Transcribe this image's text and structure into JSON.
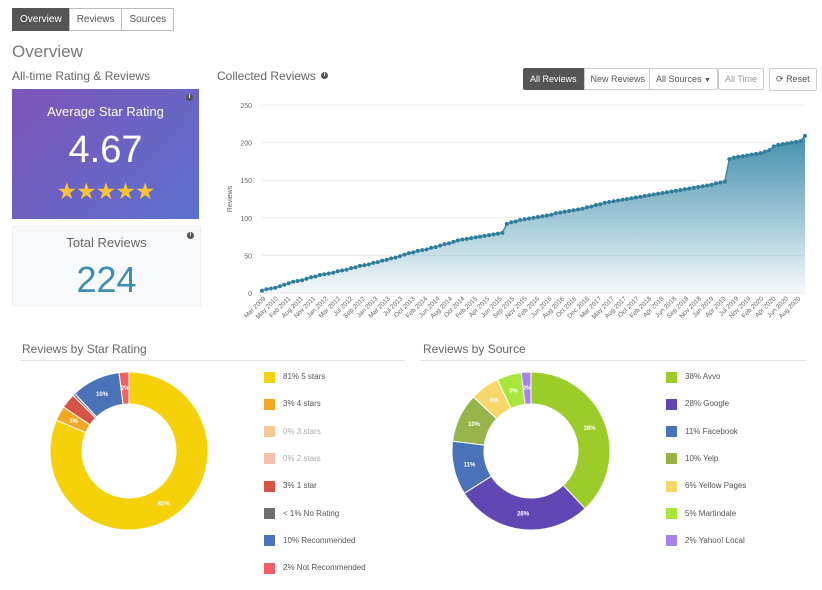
{
  "tabs": [
    "Overview",
    "Reviews",
    "Sources"
  ],
  "page_title": "Overview",
  "left_section_title": "All-time Rating & Reviews",
  "avg_card": {
    "label": "Average Star Rating",
    "value": "4.67",
    "stars": "★★★★★"
  },
  "total_card": {
    "label": "Total Reviews",
    "value": "224"
  },
  "chart_section_title": "Collected Reviews",
  "chart_buttons": {
    "all_reviews": "All Reviews",
    "new_reviews": "New Reviews",
    "all_sources": "All Sources",
    "all_time": "All Time",
    "reset": "Reset"
  },
  "star_section_title": "Reviews by Star Rating",
  "source_section_title": "Reviews by Source",
  "colors": {
    "accent": "#3c8fb0",
    "line": "#3a8aa8",
    "avg_card_start": "#7d55b8",
    "avg_card_end": "#5b70cc"
  },
  "chart_data": [
    {
      "type": "area",
      "title": "Collected Reviews",
      "ylabel": "Reviews",
      "xlabel": "",
      "ylim": [
        0,
        250
      ],
      "yticks": [
        0,
        50,
        100,
        150,
        200,
        250
      ],
      "x_tick_labels": [
        "Mar 2009",
        "May 2010",
        "Feb 2011",
        "Aug 2011",
        "Nov 2011",
        "Jan 2012",
        "Mar 2012",
        "Jul 2012",
        "Sep 2012",
        "Jan 2013",
        "Mar 2013",
        "Jul 2013",
        "Oct 2013",
        "Feb 2014",
        "Jun 2014",
        "Aug 2014",
        "Oct 2014",
        "Feb 2015",
        "Apr 2015",
        "Jun 2015",
        "Sep 2015",
        "Nov 2015",
        "Feb 2016",
        "Jun 2016",
        "Aug 2016",
        "Oct 2016",
        "Dec 2016",
        "Mar 2017",
        "May 2017",
        "Aug 2017",
        "Oct 2017",
        "Feb 2018",
        "Apr 2018",
        "Jun 2018",
        "Sep 2018",
        "Nov 2018",
        "Jan 2019",
        "Apr 2019",
        "Jul 2019",
        "Nov 2019",
        "Feb 2020",
        "Apr 2020",
        "Jun 2020",
        "Aug 2020"
      ],
      "values": [
        3,
        5,
        6,
        7,
        9,
        11,
        13,
        15,
        16,
        17,
        19,
        21,
        22,
        24,
        25,
        26,
        27,
        29,
        30,
        31,
        33,
        34,
        36,
        37,
        38,
        40,
        41,
        43,
        44,
        46,
        47,
        49,
        51,
        53,
        54,
        56,
        57,
        58,
        60,
        61,
        63,
        65,
        66,
        68,
        70,
        71,
        72,
        73,
        74,
        75,
        76,
        77,
        78,
        79,
        80,
        92,
        94,
        95,
        97,
        98,
        99,
        100,
        101,
        102,
        103,
        104,
        106,
        107,
        108,
        109,
        110,
        111,
        112,
        114,
        115,
        117,
        118,
        120,
        121,
        122,
        123,
        124,
        125,
        126,
        127,
        128,
        129,
        130,
        131,
        132,
        133,
        134,
        135,
        136,
        137,
        138,
        139,
        140,
        141,
        142,
        143,
        144,
        146,
        147,
        148,
        178,
        180,
        181,
        182,
        183,
        184,
        185,
        186,
        188,
        190,
        195,
        197,
        198,
        199,
        200,
        201,
        202,
        209
      ],
      "grid": true
    },
    {
      "type": "pie",
      "title": "Reviews by Star Rating",
      "donut": true,
      "slices": [
        {
          "label": "81% 5 stars",
          "pct": 81,
          "display": "81%",
          "color": "#f5d10a"
        },
        {
          "label": "3% 4 stars",
          "pct": 3,
          "display": "3%",
          "color": "#f0a826"
        },
        {
          "label": "0% 3 stars",
          "pct": 0,
          "display": "",
          "color": "#f5c89a",
          "muted": true
        },
        {
          "label": "0% 2 stars",
          "pct": 0,
          "display": "",
          "color": "#f5bfae",
          "muted": true
        },
        {
          "label": "3% 1 star",
          "pct": 3,
          "display": "",
          "color": "#d95247"
        },
        {
          "label": "< 1% No Rating",
          "pct": 0.5,
          "display": "",
          "color": "#707070"
        },
        {
          "label": "10% Recommended",
          "pct": 10,
          "display": "10%",
          "color": "#4a72b8"
        },
        {
          "label": "2% Not Recommended",
          "pct": 2,
          "display": "2%",
          "color": "#f26066"
        }
      ]
    },
    {
      "type": "pie",
      "title": "Reviews by Source",
      "donut": true,
      "slices": [
        {
          "label": "38% Avvo",
          "pct": 38,
          "display": "38%",
          "color": "#9ccc2a"
        },
        {
          "label": "28% Google",
          "pct": 28,
          "display": "28%",
          "color": "#6147b4"
        },
        {
          "label": "11% Facebook",
          "pct": 11,
          "display": "11%",
          "color": "#4a72b8"
        },
        {
          "label": "10% Yelp",
          "pct": 10,
          "display": "10%",
          "color": "#96b44a"
        },
        {
          "label": "6% Yellow Pages",
          "pct": 6,
          "display": "6%",
          "color": "#f7d66a"
        },
        {
          "label": "5% Martindale",
          "pct": 5,
          "display": "5%",
          "color": "#a8e63c"
        },
        {
          "label": "2% Yahoo! Local",
          "pct": 2,
          "display": "2%",
          "color": "#a584e8"
        }
      ]
    }
  ]
}
